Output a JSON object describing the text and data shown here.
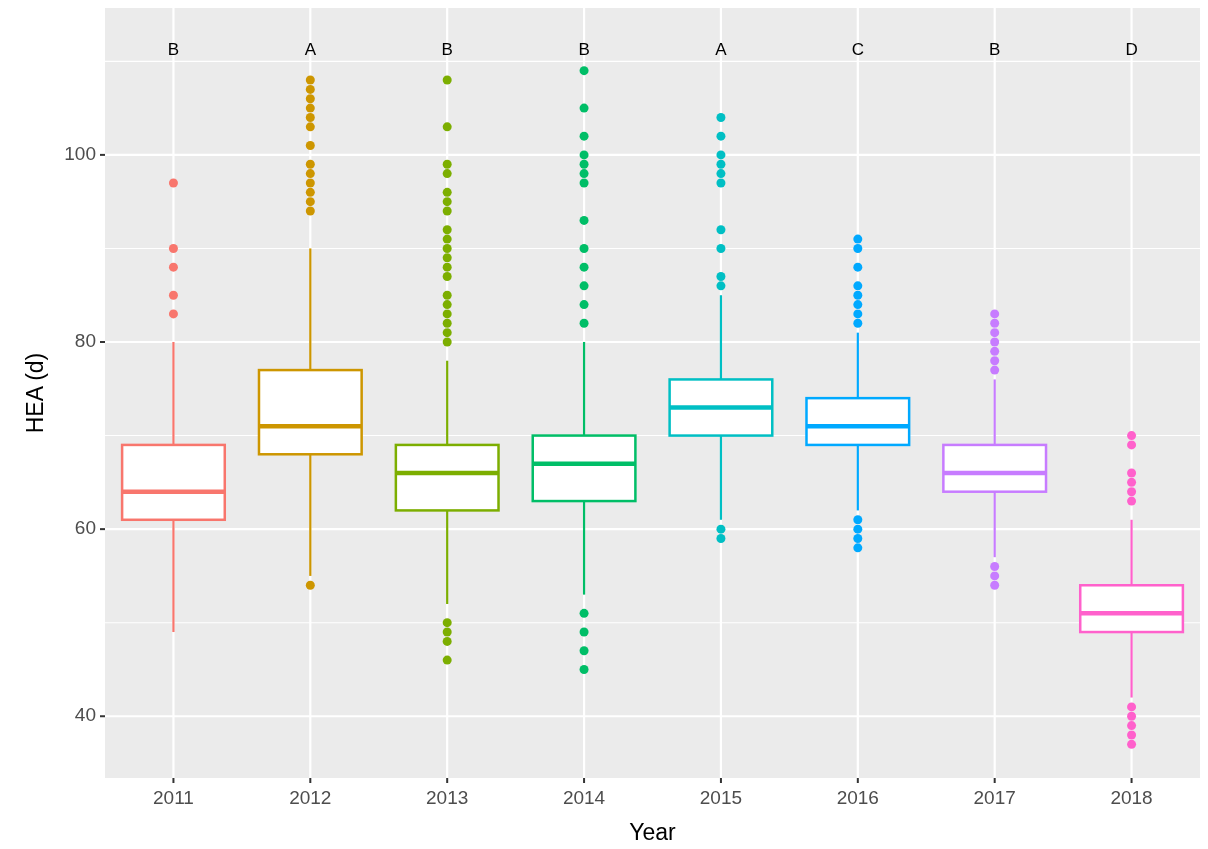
{
  "chart_data": {
    "type": "box",
    "xlabel": "Year",
    "ylabel": "HEA (d)",
    "categories": [
      "2011",
      "2012",
      "2013",
      "2014",
      "2015",
      "2016",
      "2017",
      "2018"
    ],
    "colors": [
      "#f8766d",
      "#cd9600",
      "#7cae00",
      "#00be67",
      "#00bfc4",
      "#00a9ff",
      "#c77cff",
      "#ff61cc"
    ],
    "boxes": [
      {
        "low": 49,
        "q1": 61,
        "median": 64,
        "q3": 69,
        "high": 80,
        "outliers": [
          83,
          85,
          88,
          90,
          97
        ]
      },
      {
        "low": 55,
        "q1": 68,
        "median": 71,
        "q3": 77,
        "high": 90,
        "outliers": [
          54,
          94,
          95,
          96,
          97,
          98,
          99,
          101,
          103,
          104,
          105,
          106,
          107,
          108
        ]
      },
      {
        "low": 52,
        "q1": 62,
        "median": 66,
        "q3": 69,
        "high": 78,
        "outliers": [
          46,
          48,
          49,
          50,
          80,
          81,
          82,
          83,
          84,
          85,
          87,
          88,
          89,
          90,
          91,
          92,
          94,
          95,
          96,
          98,
          99,
          103,
          108
        ]
      },
      {
        "low": 53,
        "q1": 63,
        "median": 67,
        "q3": 70,
        "high": 80,
        "outliers": [
          45,
          47,
          49,
          51,
          82,
          84,
          86,
          88,
          90,
          93,
          97,
          98,
          99,
          100,
          102,
          105,
          109
        ]
      },
      {
        "low": 61,
        "q1": 70,
        "median": 73,
        "q3": 76,
        "high": 85,
        "outliers": [
          59,
          60,
          86,
          87,
          90,
          92,
          97,
          98,
          99,
          100,
          102,
          104
        ]
      },
      {
        "low": 62,
        "q1": 69,
        "median": 71,
        "q3": 74,
        "high": 81,
        "outliers": [
          58,
          59,
          60,
          61,
          82,
          83,
          84,
          85,
          86,
          88,
          90,
          91
        ]
      },
      {
        "low": 57,
        "q1": 64,
        "median": 66,
        "q3": 69,
        "high": 76,
        "outliers": [
          54,
          55,
          56,
          77,
          78,
          79,
          80,
          81,
          82,
          83
        ]
      },
      {
        "low": 42,
        "q1": 49,
        "median": 51,
        "q3": 54,
        "high": 61,
        "outliers": [
          37,
          38,
          39,
          40,
          41,
          63,
          64,
          65,
          66,
          69,
          70
        ]
      }
    ],
    "ylim": [
      33.4,
      115.7
    ],
    "yticks": [
      40,
      60,
      80,
      100
    ],
    "grid": true,
    "annotations": [
      "B",
      "A",
      "B",
      "B",
      "A",
      "C",
      "B",
      "D"
    ]
  }
}
